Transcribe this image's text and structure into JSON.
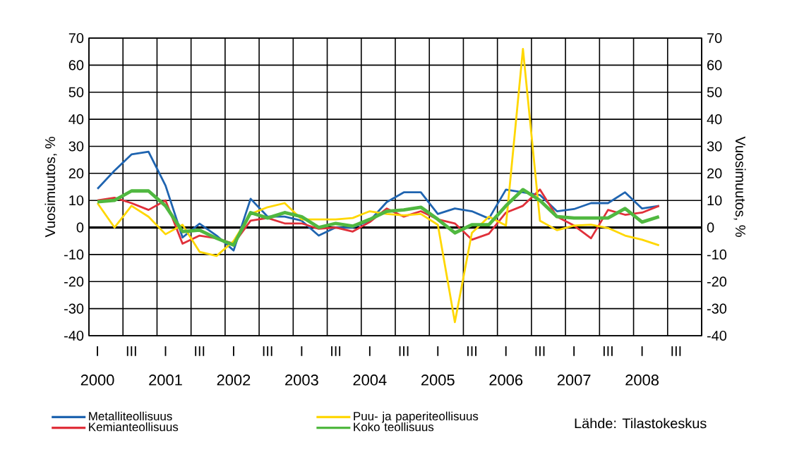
{
  "chart_data": {
    "type": "line",
    "categories": [
      "I",
      null,
      "III",
      null,
      "I",
      null,
      "III",
      null,
      "I",
      null,
      "III",
      null,
      "I",
      null,
      "III",
      null,
      "I",
      null,
      "III",
      null,
      "I",
      null,
      "III",
      null,
      "I",
      null,
      "III",
      null,
      "I",
      null,
      "III",
      null,
      "I",
      null,
      "III",
      null
    ],
    "ylabel": "Vuosimuutos, %",
    "y2label": "Vuosimuutos, %",
    "ylim": [
      -40,
      70
    ],
    "yticks": [
      -40,
      -30,
      -20,
      -10,
      0,
      10,
      20,
      30,
      40,
      50,
      60,
      70
    ],
    "y2lim": [
      -40,
      70
    ],
    "y2ticks": [
      -40,
      -30,
      -20,
      -10,
      0,
      10,
      20,
      30,
      40,
      50,
      60,
      70
    ],
    "grid": true,
    "legend": "bottom",
    "marker": "none",
    "line_style": "solid",
    "annotations": [
      "2000",
      "2001",
      "2002",
      "2003",
      "2004",
      "2005",
      "2006",
      "2007",
      "2008",
      "Lähde: Tilastokeskus"
    ],
    "series": [
      {
        "name": "Metalliteollisuus",
        "color": "#1f64b0",
        "values": [
          14.3,
          21,
          27,
          28,
          15.5,
          -3.7,
          1.4,
          -3,
          -8.5,
          10.6,
          4,
          4,
          2.5,
          -3,
          0,
          0,
          2.5,
          9.4,
          13,
          13,
          5,
          7,
          6,
          3.3,
          14,
          13,
          12,
          6,
          6.8,
          9,
          9,
          13,
          7,
          8,
          null,
          null
        ]
      },
      {
        "name": "Kemianteollisuus",
        "color": "#e0303a",
        "values": [
          10,
          11,
          9,
          6.5,
          10,
          -6,
          -3,
          -4,
          -6,
          2.5,
          3.5,
          1.5,
          1.5,
          -0.5,
          0,
          -1.5,
          2,
          7,
          4,
          6,
          3,
          1.5,
          -4.5,
          -2.3,
          5.5,
          8,
          14,
          4,
          0.7,
          -4,
          6.5,
          4.7,
          5.5,
          8,
          null,
          null
        ]
      },
      {
        "name": "Puu- ja paperiteollisuus",
        "color": "#ffd700",
        "values": [
          9,
          0,
          8,
          4,
          -2.5,
          1,
          -9,
          -10.5,
          -5,
          5,
          7.5,
          9,
          3,
          3,
          3,
          3.5,
          6,
          5,
          4.5,
          5,
          1,
          -35,
          -2,
          4,
          0.7,
          66,
          2.5,
          -1,
          0.7,
          1,
          -0.2,
          -3,
          -4.5,
          -6.6,
          null,
          null
        ]
      },
      {
        "name": "Koko teollisuus",
        "color": "#50b840",
        "values": [
          9.5,
          10,
          13.5,
          13.5,
          8,
          -1.5,
          -1,
          -4,
          -6.5,
          5.5,
          3.5,
          5.5,
          4,
          0,
          1.5,
          0.5,
          3,
          6,
          6.5,
          7.5,
          3,
          -2,
          1,
          1,
          8,
          14,
          10,
          4,
          3.5,
          3.5,
          3.5,
          7,
          2,
          4,
          null,
          null
        ]
      }
    ]
  }
}
